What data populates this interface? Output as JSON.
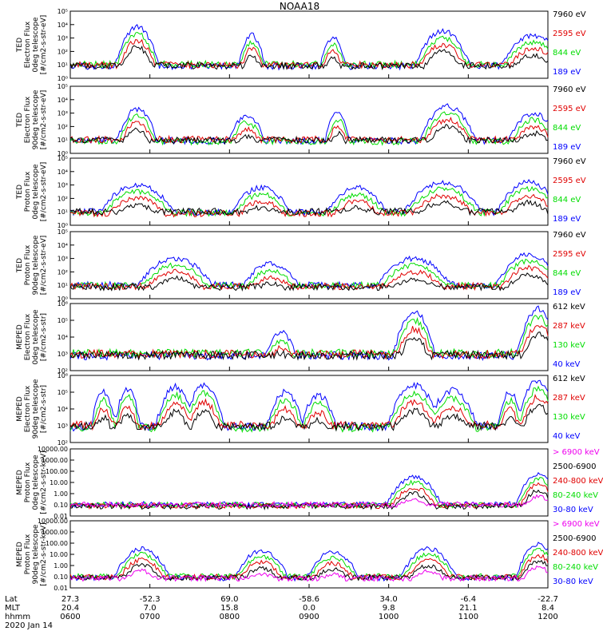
{
  "title": "NOAA18",
  "chart_data": [
    {
      "type": "line",
      "ylabel": [
        "TED",
        "Electron Flux",
        "0deg telescope",
        "[#/cm2-s-str-eV]"
      ],
      "y_ticks": [
        "10⁵",
        "10⁴",
        "10³",
        "10²",
        "10¹",
        "10⁰"
      ],
      "log_range": [
        0,
        5
      ],
      "legend": [
        {
          "name": "7960 eV",
          "color": "#000000"
        },
        {
          "name": "2595 eV",
          "color": "#e00000"
        },
        {
          "name": "844 eV",
          "color": "#00dd00"
        },
        {
          "name": "189 eV",
          "color": "#0000ff"
        }
      ],
      "events": [
        {
          "x": 0.14,
          "w": 0.03,
          "peak": 3.8
        },
        {
          "x": 0.38,
          "w": 0.02,
          "peak": 3.2
        },
        {
          "x": 0.55,
          "w": 0.02,
          "peak": 3.0
        },
        {
          "x": 0.78,
          "w": 0.04,
          "peak": 3.5
        },
        {
          "x": 0.97,
          "w": 0.05,
          "peak": 3.2
        }
      ]
    },
    {
      "type": "line",
      "ylabel": [
        "TED",
        "Electron Flux",
        "90deg telescope",
        "[#/cm2-s-str-eV]"
      ],
      "y_ticks": [
        "10⁵",
        "10⁴",
        "10³",
        "10²",
        "10¹",
        "10⁰"
      ],
      "log_range": [
        0,
        5
      ],
      "legend": [
        {
          "name": "7960 eV",
          "color": "#000000"
        },
        {
          "name": "2595 eV",
          "color": "#e00000"
        },
        {
          "name": "844 eV",
          "color": "#00dd00"
        },
        {
          "name": "189 eV",
          "color": "#0000ff"
        }
      ],
      "events": [
        {
          "x": 0.14,
          "w": 0.03,
          "peak": 3.3
        },
        {
          "x": 0.37,
          "w": 0.03,
          "peak": 2.8
        },
        {
          "x": 0.56,
          "w": 0.02,
          "peak": 3.0
        },
        {
          "x": 0.79,
          "w": 0.04,
          "peak": 3.5
        },
        {
          "x": 0.97,
          "w": 0.04,
          "peak": 3.0
        }
      ]
    },
    {
      "type": "line",
      "ylabel": [
        "TED",
        "Proton Flux",
        "0deg telescope",
        "[#/cm2-s-str-eV]"
      ],
      "y_ticks": [
        "10⁵",
        "10⁴",
        "10³",
        "10²",
        "10¹",
        "10⁰"
      ],
      "log_range": [
        0,
        5
      ],
      "legend": [
        {
          "name": "7960 eV",
          "color": "#000000"
        },
        {
          "name": "2595 eV",
          "color": "#e00000"
        },
        {
          "name": "844 eV",
          "color": "#00dd00"
        },
        {
          "name": "189 eV",
          "color": "#0000ff"
        }
      ],
      "events": [
        {
          "x": 0.14,
          "w": 0.06,
          "peak": 3.0
        },
        {
          "x": 0.4,
          "w": 0.05,
          "peak": 2.8
        },
        {
          "x": 0.6,
          "w": 0.05,
          "peak": 2.8
        },
        {
          "x": 0.78,
          "w": 0.06,
          "peak": 3.2
        },
        {
          "x": 0.96,
          "w": 0.05,
          "peak": 3.2
        }
      ]
    },
    {
      "type": "line",
      "ylabel": [
        "TED",
        "Proton Flux",
        "90deg telescope",
        "[#/cm2-s-str-eV]"
      ],
      "y_ticks": [
        "10⁵",
        "10⁴",
        "10³",
        "10²",
        "10¹",
        "10⁰"
      ],
      "log_range": [
        0,
        5
      ],
      "legend": [
        {
          "name": "7960 eV",
          "color": "#000000"
        },
        {
          "name": "2595 eV",
          "color": "#e00000"
        },
        {
          "name": "844 eV",
          "color": "#00dd00"
        },
        {
          "name": "189 eV",
          "color": "#0000ff"
        }
      ],
      "events": [
        {
          "x": 0.22,
          "w": 0.06,
          "peak": 3.0
        },
        {
          "x": 0.42,
          "w": 0.05,
          "peak": 2.6
        },
        {
          "x": 0.72,
          "w": 0.06,
          "peak": 3.0
        },
        {
          "x": 0.96,
          "w": 0.05,
          "peak": 3.3
        }
      ]
    },
    {
      "type": "line",
      "ylabel": [
        "MEPED",
        "Electron Flux",
        "0deg telescope",
        "[#/cm2-s-str]"
      ],
      "y_ticks": [
        "10⁶",
        "10⁵",
        "10⁴",
        "10³",
        "10²"
      ],
      "log_range": [
        2,
        6
      ],
      "legend": [
        {
          "name": "612 keV",
          "color": "#000000"
        },
        {
          "name": "287 keV",
          "color": "#e00000"
        },
        {
          "name": "130 keV",
          "color": "#00dd00"
        },
        {
          "name": "40 keV",
          "color": "#0000ff"
        }
      ],
      "events": [
        {
          "x": 0.44,
          "w": 0.03,
          "peak": 4.3
        },
        {
          "x": 0.72,
          "w": 0.03,
          "peak": 5.5
        },
        {
          "x": 0.98,
          "w": 0.03,
          "peak": 5.7
        }
      ]
    },
    {
      "type": "line",
      "ylabel": [
        "MEPED",
        "Electron Flux",
        "90deg telescope",
        "[#/cm2-s-str]"
      ],
      "y_ticks": [
        "10⁶",
        "10⁵",
        "10⁴",
        "10³",
        "10²"
      ],
      "log_range": [
        2,
        6
      ],
      "legend": [
        {
          "name": "612 keV",
          "color": "#000000"
        },
        {
          "name": "287 keV",
          "color": "#e00000"
        },
        {
          "name": "130 keV",
          "color": "#00dd00"
        },
        {
          "name": "40 keV",
          "color": "#0000ff"
        }
      ],
      "events": [
        {
          "x": 0.07,
          "w": 0.02,
          "peak": 5.0
        },
        {
          "x": 0.12,
          "w": 0.02,
          "peak": 5.2
        },
        {
          "x": 0.22,
          "w": 0.03,
          "peak": 5.3
        },
        {
          "x": 0.28,
          "w": 0.03,
          "peak": 5.4
        },
        {
          "x": 0.45,
          "w": 0.03,
          "peak": 5.0
        },
        {
          "x": 0.52,
          "w": 0.03,
          "peak": 4.8
        },
        {
          "x": 0.72,
          "w": 0.04,
          "peak": 5.4
        },
        {
          "x": 0.8,
          "w": 0.04,
          "peak": 5.1
        },
        {
          "x": 0.92,
          "w": 0.02,
          "peak": 5.0
        },
        {
          "x": 0.98,
          "w": 0.03,
          "peak": 5.7
        }
      ]
    },
    {
      "type": "line",
      "ylabel": [
        "MEPED",
        "Proton Flux",
        "0deg telescope",
        "[#/cm2-s-str-keV]"
      ],
      "y_ticks": [
        "10000.00",
        "1000.00",
        "100.00",
        "10.00",
        "1.00",
        "0.10",
        "0.01"
      ],
      "log_range": [
        -2,
        4
      ],
      "legend": [
        {
          "name": "> 6900 keV",
          "color": "#ee00ee"
        },
        {
          "name": "2500-6900",
          "color": "#000000"
        },
        {
          "name": "240-800 keV",
          "color": "#e00000"
        },
        {
          "name": "80-240 keV",
          "color": "#00dd00"
        },
        {
          "name": "30-80 keV",
          "color": "#0000ff"
        }
      ],
      "events": [
        {
          "x": 0.72,
          "w": 0.04,
          "peak": 1.5
        },
        {
          "x": 0.98,
          "w": 0.03,
          "peak": 1.8
        }
      ]
    },
    {
      "type": "line",
      "ylabel": [
        "MEPED",
        "Proton Flux",
        "90deg telescope",
        "[#/cm2-s-str-keV]"
      ],
      "y_ticks": [
        "10000.00",
        "1000.00",
        "100.00",
        "10.00",
        "1.00",
        "0.10",
        "0.01"
      ],
      "log_range": [
        -2,
        4
      ],
      "legend": [
        {
          "name": "> 6900 keV",
          "color": "#ee00ee"
        },
        {
          "name": "2500-6900",
          "color": "#000000"
        },
        {
          "name": "240-800 keV",
          "color": "#e00000"
        },
        {
          "name": "80-240 keV",
          "color": "#00dd00"
        },
        {
          "name": "30-80 keV",
          "color": "#0000ff"
        }
      ],
      "events": [
        {
          "x": 0.15,
          "w": 0.04,
          "peak": 1.5
        },
        {
          "x": 0.4,
          "w": 0.04,
          "peak": 1.3
        },
        {
          "x": 0.55,
          "w": 0.04,
          "peak": 1.2
        },
        {
          "x": 0.75,
          "w": 0.04,
          "peak": 1.5
        },
        {
          "x": 0.98,
          "w": 0.03,
          "peak": 1.9
        }
      ]
    }
  ],
  "x_axis": {
    "row_labels": [
      "Lat",
      "MLT",
      "hhmm",
      "2020 Jan 14"
    ],
    "ticks": [
      {
        "lat": "27.3",
        "mlt": "20.4",
        "time": "0600"
      },
      {
        "lat": "-52.3",
        "mlt": "7.0",
        "time": "0700"
      },
      {
        "lat": "69.0",
        "mlt": "15.8",
        "time": "0800"
      },
      {
        "lat": "-58.6",
        "mlt": "0.0",
        "time": "0900"
      },
      {
        "lat": "34.0",
        "mlt": "9.8",
        "time": "1000"
      },
      {
        "lat": "-6.4",
        "mlt": "21.1",
        "time": "1100"
      },
      {
        "lat": "-22.7",
        "mlt": "8.4",
        "time": "1200"
      }
    ]
  }
}
